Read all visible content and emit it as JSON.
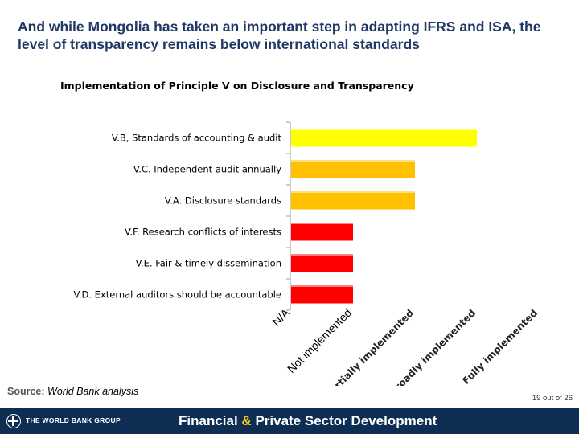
{
  "slide": {
    "title": "And while Mongolia has taken an important step in adapting IFRS and ISA, the level of transparency remains below international standards"
  },
  "chart_data": {
    "type": "bar",
    "orientation": "horizontal",
    "title": "Implementation of Principle V on Disclosure and Transparency",
    "categories": [
      "V.B, Standards of accounting & audit",
      "V.C. Independent audit annually",
      "V.A. Disclosure standards",
      "V.F. Research conflicts of interests",
      "V.E. Fair & timely dissemination",
      "V.D. External auditors should be accountable"
    ],
    "values": [
      3,
      2,
      2,
      1,
      1,
      1
    ],
    "bar_colors": [
      "#ffff00",
      "#ffc000",
      "#ffc000",
      "#ff0000",
      "#ff0000",
      "#ff0000"
    ],
    "x_tick_labels": [
      "N/A",
      "Not implemented",
      "Partially implemented",
      "Broadly implemented",
      "Fully implemented"
    ],
    "xlim": [
      0,
      4
    ],
    "xlabel": "",
    "ylabel": ""
  },
  "source": {
    "label": "Source:",
    "text": "World Bank analysis"
  },
  "page": {
    "number": "19 out of 26"
  },
  "footer": {
    "org_name": "THE WORLD BANK GROUP",
    "tagline_part1": "Financial",
    "tagline_amp": "&",
    "tagline_part2": "Private Sector Development",
    "background_color": "#0d2d52",
    "accent_color": "#f5c61b"
  }
}
